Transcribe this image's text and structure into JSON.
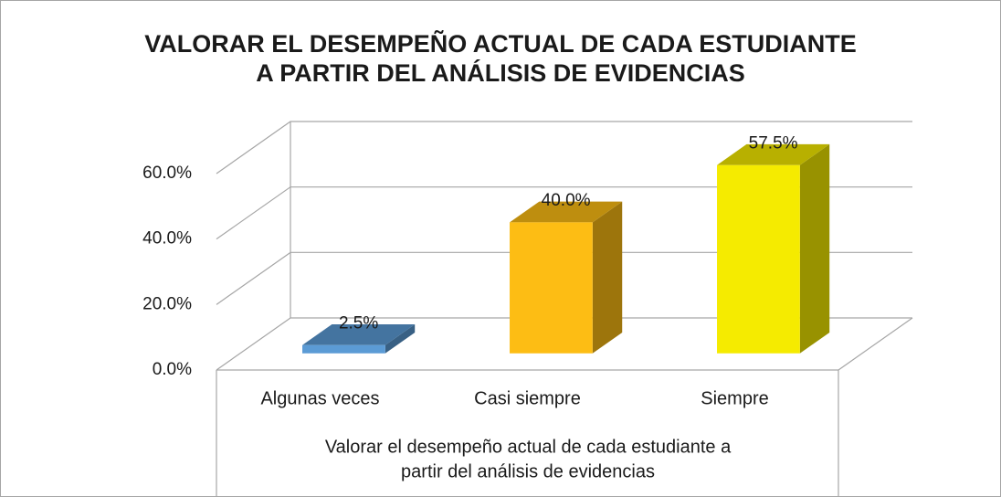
{
  "chart_data": {
    "type": "bar3d",
    "title": [
      "VALORAR EL DESEMPEÑO ACTUAL DE CADA ESTUDIANTE",
      "A PARTIR DEL ANÁLISIS DE EVIDENCIAS"
    ],
    "categories": [
      "Algunas veces",
      "Casi siempre",
      "Siempre"
    ],
    "values": [
      2.5,
      40,
      57.5
    ],
    "value_labels": [
      "2.5%",
      "40.0%",
      "57.5%"
    ],
    "colors": [
      "#5b9bd5",
      "#fdbd14",
      "#f5eb00"
    ],
    "x_label": [
      "Valorar el desempeño actual de cada estudiante a",
      "partir del análisis de evidencias"
    ],
    "ylim": [
      0,
      60
    ],
    "yticks": [
      {
        "value": 0,
        "label": "0.0%"
      },
      {
        "value": 20,
        "label": "20.0%"
      },
      {
        "value": 40,
        "label": "40.0%"
      },
      {
        "value": 60,
        "label": "60.0%"
      }
    ],
    "grid": true
  }
}
